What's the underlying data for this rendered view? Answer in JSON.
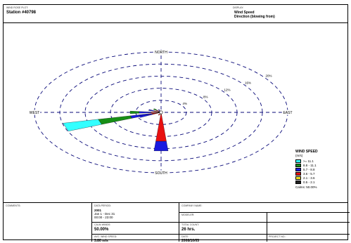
{
  "header": {
    "plot_caption": "WIND ROSE PLOT:",
    "station": "Station #40798",
    "display_caption": "DISPLAY:",
    "display_line1": "Wind Speed",
    "display_line2": "Direction (blowing from)"
  },
  "chart_data": {
    "type": "wind_rose",
    "directions": {
      "north": "NORTH",
      "south": "SOUTH",
      "east": "EAST",
      "west": "WEST"
    },
    "ring_labels": [
      "4%",
      "8%",
      "12%",
      "16%",
      "20%"
    ],
    "ring_values": [
      4,
      8,
      12,
      16,
      20
    ],
    "calms_percent": 50.0,
    "legend": {
      "title1": "WIND SPEED",
      "title2": "(m/s)",
      "bins": [
        {
          "label": ">= 11.1",
          "color": "#33ffff"
        },
        {
          "label": "8.8 - 11.1",
          "color": "#168f16"
        },
        {
          "label": "5.7 - 8.8",
          "color": "#1a1ae0"
        },
        {
          "label": "3.6 - 5.7",
          "color": "#e81010"
        },
        {
          "label": "2.1 - 3.6",
          "color": "#f0e020"
        },
        {
          "label": "0.5 - 2.1",
          "color": "#222222"
        }
      ],
      "calms": "Calms: 50.00%"
    },
    "petals": [
      {
        "direction_deg": 252,
        "segments": [
          {
            "bin": 5,
            "pct": 0.4
          },
          {
            "bin": 4,
            "pct": 0.2
          },
          {
            "bin": 3,
            "pct": 1.5
          },
          {
            "bin": 2,
            "pct": 2.9
          },
          {
            "bin": 1,
            "pct": 5.2
          },
          {
            "bin": 0,
            "pct": 5.7
          }
        ]
      },
      {
        "direction_deg": 180,
        "segments": [
          {
            "bin": 5,
            "pct": 0.4
          },
          {
            "bin": 4,
            "pct": 0.3
          },
          {
            "bin": 3,
            "pct": 8.9
          },
          {
            "bin": 2,
            "pct": 3.2
          }
        ]
      },
      {
        "direction_deg": 270,
        "segments": [
          {
            "bin": 5,
            "pct": 0.4
          },
          {
            "bin": 3,
            "pct": 1.2
          },
          {
            "bin": 2,
            "pct": 1.9
          },
          {
            "bin": 1,
            "pct": 1.4
          }
        ]
      },
      {
        "direction_deg": 247.5,
        "segments": [
          {
            "bin": 5,
            "pct": 0.4
          },
          {
            "bin": 3,
            "pct": 1.1
          },
          {
            "bin": 2,
            "pct": 2.2
          }
        ]
      },
      {
        "direction_deg": 292.5,
        "segments": [
          {
            "bin": 5,
            "pct": 0.4
          },
          {
            "bin": 3,
            "pct": 0.8
          },
          {
            "bin": 2,
            "pct": 0.9
          }
        ]
      },
      {
        "direction_deg": 315,
        "segments": [
          {
            "bin": 5,
            "pct": 0.4
          },
          {
            "bin": 3,
            "pct": 0.6
          },
          {
            "bin": 1,
            "pct": 0.6
          }
        ]
      },
      {
        "direction_deg": 337.5,
        "segments": [
          {
            "bin": 5,
            "pct": 0.4
          },
          {
            "bin": 2,
            "pct": 0.6
          }
        ]
      },
      {
        "direction_deg": 202.5,
        "segments": [
          {
            "bin": 5,
            "pct": 0.4
          },
          {
            "bin": 3,
            "pct": 0.6
          }
        ]
      }
    ]
  },
  "footer": {
    "comments_caption": "COMMENTS:",
    "data_period_caption": "DATA PERIOD:",
    "data_period_year": "2001",
    "data_period_range": "Jan 1 - Dec 31",
    "data_period_hours": "00:00 - 23:00",
    "company_caption": "COMPANY NAME:",
    "modeler_caption": "MODELER:",
    "calm_caption": "CALM WINDS:",
    "calm_value": "50.00%",
    "total_count_caption": "TOTAL COUNT:",
    "total_count_value": "26 hrs.",
    "avg_speed_caption": "AVG. WIND SPEED:",
    "avg_speed_value": "3.80 m/s",
    "date_caption": "DATE:",
    "date_value": "2008/10/05",
    "project_caption": "PROJECT NO.:"
  }
}
